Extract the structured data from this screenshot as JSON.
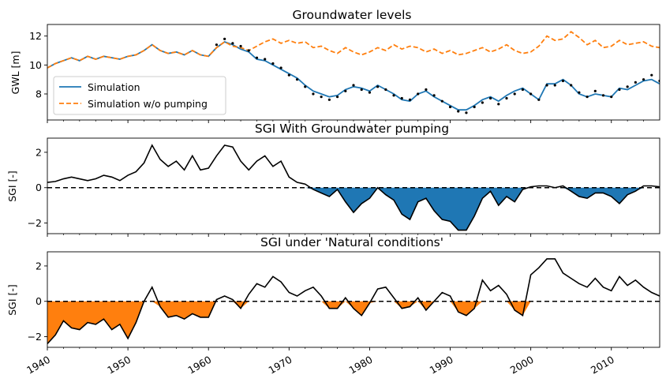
{
  "chart_data": [
    {
      "type": "line",
      "title": "Groundwater levels",
      "xlabel": "",
      "ylabel": "GWL [m]",
      "xlim": [
        1940,
        2016
      ],
      "ylim": [
        6.2,
        12.8
      ],
      "yticks": [
        8,
        10,
        12
      ],
      "legend_position": "lower-left",
      "series": [
        {
          "name": "Simulation",
          "style": "solid",
          "color": "#1f77b4",
          "x": [
            1940,
            1941,
            1942,
            1943,
            1944,
            1945,
            1946,
            1947,
            1948,
            1949,
            1950,
            1951,
            1952,
            1953,
            1954,
            1955,
            1956,
            1957,
            1958,
            1959,
            1960,
            1961,
            1962,
            1963,
            1964,
            1965,
            1966,
            1967,
            1968,
            1969,
            1970,
            1971,
            1972,
            1973,
            1974,
            1975,
            1976,
            1977,
            1978,
            1979,
            1980,
            1981,
            1982,
            1983,
            1984,
            1985,
            1986,
            1987,
            1988,
            1989,
            1990,
            1991,
            1992,
            1993,
            1994,
            1995,
            1996,
            1997,
            1998,
            1999,
            2000,
            2001,
            2002,
            2003,
            2004,
            2005,
            2006,
            2007,
            2008,
            2009,
            2010,
            2011,
            2012,
            2013,
            2014,
            2015,
            2016
          ],
          "values": [
            9.8,
            10.1,
            10.3,
            10.5,
            10.3,
            10.6,
            10.4,
            10.6,
            10.5,
            10.4,
            10.6,
            10.7,
            11.0,
            11.4,
            11.0,
            10.8,
            10.9,
            10.7,
            11.0,
            10.7,
            10.6,
            11.2,
            11.6,
            11.4,
            11.1,
            10.9,
            10.4,
            10.3,
            10.0,
            9.7,
            9.4,
            9.1,
            8.6,
            8.2,
            8.0,
            7.8,
            7.9,
            8.3,
            8.5,
            8.4,
            8.2,
            8.6,
            8.3,
            8.0,
            7.6,
            7.5,
            8.0,
            8.2,
            7.8,
            7.5,
            7.2,
            6.9,
            6.9,
            7.2,
            7.6,
            7.8,
            7.5,
            7.9,
            8.2,
            8.4,
            8.0,
            7.6,
            8.7,
            8.7,
            9.0,
            8.6,
            8.0,
            7.8,
            8.0,
            7.9,
            7.8,
            8.4,
            8.3,
            8.6,
            8.9,
            9.0,
            8.7
          ]
        },
        {
          "name": "Simulation w/o pumping",
          "style": "dashed",
          "color": "#ff7f0e",
          "x": [
            1940,
            1941,
            1942,
            1943,
            1944,
            1945,
            1946,
            1947,
            1948,
            1949,
            1950,
            1951,
            1952,
            1953,
            1954,
            1955,
            1956,
            1957,
            1958,
            1959,
            1960,
            1961,
            1962,
            1963,
            1964,
            1965,
            1966,
            1967,
            1968,
            1969,
            1970,
            1971,
            1972,
            1973,
            1974,
            1975,
            1976,
            1977,
            1978,
            1979,
            1980,
            1981,
            1982,
            1983,
            1984,
            1985,
            1986,
            1987,
            1988,
            1989,
            1990,
            1991,
            1992,
            1993,
            1994,
            1995,
            1996,
            1997,
            1998,
            1999,
            2000,
            2001,
            2002,
            2003,
            2004,
            2005,
            2006,
            2007,
            2008,
            2009,
            2010,
            2011,
            2012,
            2013,
            2014,
            2015,
            2016
          ],
          "values": [
            9.8,
            10.1,
            10.3,
            10.5,
            10.3,
            10.6,
            10.4,
            10.6,
            10.5,
            10.4,
            10.6,
            10.7,
            11.0,
            11.4,
            11.0,
            10.8,
            10.9,
            10.7,
            11.0,
            10.7,
            10.6,
            11.2,
            11.6,
            11.3,
            11.2,
            11.0,
            11.3,
            11.6,
            11.8,
            11.5,
            11.7,
            11.5,
            11.6,
            11.2,
            11.3,
            11.0,
            10.8,
            11.2,
            10.9,
            10.7,
            10.9,
            11.2,
            11.0,
            11.4,
            11.1,
            11.3,
            11.2,
            10.9,
            11.1,
            10.8,
            11.0,
            10.7,
            10.8,
            11.0,
            11.2,
            10.9,
            11.1,
            11.4,
            11.0,
            10.8,
            10.9,
            11.3,
            12.0,
            11.7,
            11.8,
            12.3,
            11.9,
            11.4,
            11.7,
            11.2,
            11.3,
            11.7,
            11.4,
            11.5,
            11.6,
            11.3,
            11.2
          ]
        },
        {
          "name": "",
          "style": "points",
          "color": "#000000",
          "x": [
            1961,
            1962,
            1963,
            1964,
            1965,
            1966,
            1967,
            1968,
            1969,
            1970,
            1971,
            1972,
            1973,
            1974,
            1975,
            1976,
            1977,
            1978,
            1979,
            1980,
            1981,
            1982,
            1983,
            1984,
            1985,
            1986,
            1987,
            1988,
            1989,
            1990,
            1991,
            1992,
            1993,
            1994,
            1995,
            1996,
            1997,
            1998,
            1999,
            2000,
            2001,
            2002,
            2003,
            2004,
            2005,
            2006,
            2007,
            2008,
            2009,
            2010,
            2011,
            2012,
            2013,
            2014,
            2015,
            2016
          ],
          "values": [
            11.4,
            11.8,
            11.5,
            11.3,
            11.0,
            10.5,
            10.4,
            10.1,
            9.8,
            9.3,
            9.0,
            8.5,
            8.0,
            7.8,
            7.6,
            7.8,
            8.2,
            8.6,
            8.3,
            8.1,
            8.5,
            8.3,
            7.9,
            7.7,
            7.6,
            8.0,
            8.3,
            7.9,
            7.5,
            7.1,
            6.8,
            6.7,
            7.1,
            7.4,
            7.7,
            7.3,
            7.7,
            8.0,
            8.3,
            8.0,
            7.6,
            8.6,
            8.6,
            8.9,
            8.6,
            8.1,
            7.8,
            8.2,
            7.9,
            7.8,
            8.3,
            8.5,
            8.8,
            9.0,
            9.3,
            8.9
          ]
        }
      ]
    },
    {
      "type": "area",
      "title": "SGI With Groundwater pumping",
      "xlabel": "",
      "ylabel": "SGI [-]",
      "xlim": [
        1940,
        2016
      ],
      "ylim": [
        -2.6,
        2.8
      ],
      "yticks": [
        -2,
        0,
        2
      ],
      "fill_negative_color": "#1f77b4",
      "baseline": 0,
      "series": [
        {
          "name": "",
          "color": "#000000",
          "x": [
            1940,
            1941,
            1942,
            1943,
            1944,
            1945,
            1946,
            1947,
            1948,
            1949,
            1950,
            1951,
            1952,
            1953,
            1954,
            1955,
            1956,
            1957,
            1958,
            1959,
            1960,
            1961,
            1962,
            1963,
            1964,
            1965,
            1966,
            1967,
            1968,
            1969,
            1970,
            1971,
            1972,
            1973,
            1974,
            1975,
            1976,
            1977,
            1978,
            1979,
            1980,
            1981,
            1982,
            1983,
            1984,
            1985,
            1986,
            1987,
            1988,
            1989,
            1990,
            1991,
            1992,
            1993,
            1994,
            1995,
            1996,
            1997,
            1998,
            1999,
            2000,
            2001,
            2002,
            2003,
            2004,
            2005,
            2006,
            2007,
            2008,
            2009,
            2010,
            2011,
            2012,
            2013,
            2014,
            2015,
            2016
          ],
          "values": [
            0.3,
            0.35,
            0.5,
            0.6,
            0.5,
            0.4,
            0.5,
            0.7,
            0.6,
            0.4,
            0.7,
            0.9,
            1.4,
            2.4,
            1.6,
            1.2,
            1.5,
            1.0,
            1.8,
            1.0,
            1.1,
            1.8,
            2.4,
            2.3,
            1.5,
            1.0,
            1.5,
            1.8,
            1.2,
            1.5,
            0.6,
            0.3,
            0.2,
            -0.1,
            -0.3,
            -0.5,
            -0.1,
            -0.8,
            -1.4,
            -0.9,
            -0.6,
            0.0,
            -0.4,
            -0.7,
            -1.5,
            -1.8,
            -0.8,
            -0.6,
            -1.3,
            -1.8,
            -1.9,
            -2.4,
            -2.4,
            -1.6,
            -0.6,
            -0.2,
            -1.0,
            -0.5,
            -0.8,
            -0.1,
            0.05,
            0.1,
            0.1,
            0.0,
            0.1,
            -0.2,
            -0.5,
            -0.6,
            -0.3,
            -0.3,
            -0.5,
            -0.9,
            -0.4,
            -0.2,
            0.1,
            0.1,
            0.05
          ]
        }
      ]
    },
    {
      "type": "area",
      "title": "SGI under 'Natural conditions'",
      "xlabel": "",
      "ylabel": "SGI [-]",
      "xlim": [
        1940,
        2016
      ],
      "ylim": [
        -2.6,
        2.8
      ],
      "yticks": [
        -2,
        0,
        2
      ],
      "xticks": [
        1940,
        1950,
        1960,
        1970,
        1980,
        1990,
        2000,
        2010
      ],
      "fill_negative_color": "#ff7f0e",
      "baseline": 0,
      "series": [
        {
          "name": "",
          "color": "#000000",
          "x": [
            1940,
            1941,
            1942,
            1943,
            1944,
            1945,
            1946,
            1947,
            1948,
            1949,
            1950,
            1951,
            1952,
            1953,
            1954,
            1955,
            1956,
            1957,
            1958,
            1959,
            1960,
            1961,
            1962,
            1963,
            1964,
            1965,
            1966,
            1967,
            1968,
            1969,
            1970,
            1971,
            1972,
            1973,
            1974,
            1975,
            1976,
            1977,
            1978,
            1979,
            1980,
            1981,
            1982,
            1983,
            1984,
            1985,
            1986,
            1987,
            1988,
            1989,
            1990,
            1991,
            1992,
            1993,
            1994,
            1995,
            1996,
            1997,
            1998,
            1999,
            2000,
            2001,
            2002,
            2003,
            2004,
            2005,
            2006,
            2007,
            2008,
            2009,
            2010,
            2011,
            2012,
            2013,
            2014,
            2015,
            2016
          ],
          "values": [
            -2.4,
            -1.9,
            -1.1,
            -1.5,
            -1.6,
            -1.2,
            -1.3,
            -1.0,
            -1.6,
            -1.3,
            -2.1,
            -1.2,
            0.0,
            0.8,
            -0.3,
            -0.9,
            -0.8,
            -1.0,
            -0.7,
            -0.9,
            -0.9,
            0.1,
            0.3,
            0.1,
            -0.4,
            0.4,
            1.0,
            0.8,
            1.4,
            1.1,
            0.5,
            0.3,
            0.6,
            0.8,
            0.3,
            -0.4,
            -0.4,
            0.2,
            -0.4,
            -0.8,
            -0.1,
            0.7,
            0.8,
            0.2,
            -0.4,
            -0.3,
            0.2,
            -0.5,
            0.0,
            0.5,
            0.3,
            -0.6,
            -0.8,
            -0.4,
            1.2,
            0.6,
            0.9,
            0.4,
            -0.5,
            -0.8,
            1.5,
            1.9,
            2.4,
            2.4,
            1.6,
            1.3,
            1.0,
            0.8,
            1.3,
            0.8,
            0.6,
            1.4,
            0.9,
            1.2,
            0.8,
            0.5,
            0.3
          ]
        }
      ]
    }
  ]
}
